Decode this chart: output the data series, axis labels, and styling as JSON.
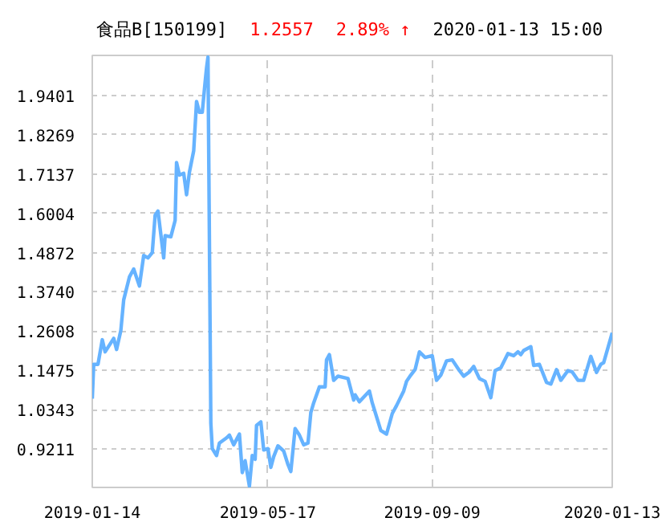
{
  "chart_data": {
    "type": "line",
    "title": "食品B[150199]",
    "annotations": [
      "1.2557",
      "2.89% ↑",
      "2020-01-13 15:00"
    ],
    "x": [
      "2019-01-14",
      "2019-01-15",
      "2019-01-18",
      "2019-01-21",
      "2019-01-23",
      "2019-01-29",
      "2019-01-31",
      "2019-02-03",
      "2019-02-05",
      "2019-02-09",
      "2019-02-12",
      "2019-02-16",
      "2019-02-19",
      "2019-02-22",
      "2019-02-25",
      "2019-02-27",
      "2019-03-01",
      "2019-03-05",
      "2019-03-06",
      "2019-03-10",
      "2019-03-13",
      "2019-03-14",
      "2019-03-16",
      "2019-03-19",
      "2019-03-21",
      "2019-03-23",
      "2019-03-26",
      "2019-03-28",
      "2019-03-30",
      "2019-04-01",
      "2019-04-03",
      "2019-04-04",
      "2019-04-05",
      "2019-04-07",
      "2019-04-08",
      "2019-04-11",
      "2019-04-13",
      "2019-04-18",
      "2019-04-20",
      "2019-04-23",
      "2019-04-27",
      "2019-04-29",
      "2019-05-01",
      "2019-05-04",
      "2019-05-06",
      "2019-05-08",
      "2019-05-09",
      "2019-05-12",
      "2019-05-14",
      "2019-05-17",
      "2019-05-19",
      "2019-05-21",
      "2019-05-24",
      "2019-05-28",
      "2019-05-31",
      "2019-06-02",
      "2019-06-05",
      "2019-06-08",
      "2019-06-11",
      "2019-06-14",
      "2019-06-16",
      "2019-06-18",
      "2019-06-22",
      "2019-06-26",
      "2019-06-27",
      "2019-06-29",
      "2019-07-02",
      "2019-07-05",
      "2019-07-12",
      "2019-07-16",
      "2019-07-17",
      "2019-07-20",
      "2019-07-27",
      "2019-07-29",
      "2019-08-04",
      "2019-08-08",
      "2019-08-12",
      "2019-08-15",
      "2019-08-20",
      "2019-08-22",
      "2019-08-25",
      "2019-08-28",
      "2019-08-31",
      "2019-09-04",
      "2019-09-09",
      "2019-09-12",
      "2019-09-15",
      "2019-09-19",
      "2019-09-23",
      "2019-09-28",
      "2019-10-01",
      "2019-10-05",
      "2019-10-08",
      "2019-10-12",
      "2019-10-16",
      "2019-10-20",
      "2019-10-23",
      "2019-10-27",
      "2019-11-01",
      "2019-11-05",
      "2019-11-08",
      "2019-11-10",
      "2019-11-12",
      "2019-11-17",
      "2019-11-19",
      "2019-11-23",
      "2019-11-28",
      "2019-12-01",
      "2019-12-05",
      "2019-12-08",
      "2019-12-13",
      "2019-12-16",
      "2019-12-20",
      "2019-12-24",
      "2019-12-29",
      "2020-01-02",
      "2020-01-05",
      "2020-01-07",
      "2020-01-13"
    ],
    "series": [
      {
        "color": "#66b3ff",
        "values": [
          1.066,
          1.165,
          1.165,
          1.236,
          1.201,
          1.24,
          1.208,
          1.263,
          1.351,
          1.417,
          1.44,
          1.391,
          1.479,
          1.472,
          1.487,
          1.595,
          1.607,
          1.472,
          1.536,
          1.533,
          1.58,
          1.747,
          1.711,
          1.716,
          1.654,
          1.719,
          1.781,
          1.923,
          1.892,
          1.892,
          1.979,
          2.02,
          2.051,
          0.995,
          0.922,
          0.902,
          0.938,
          0.953,
          0.961,
          0.933,
          0.964,
          0.853,
          0.887,
          0.814,
          0.902,
          0.891,
          0.989,
          0.999,
          0.918,
          0.922,
          0.868,
          0.899,
          0.93,
          0.915,
          0.876,
          0.856,
          0.98,
          0.961,
          0.933,
          0.938,
          1.026,
          1.054,
          1.1,
          1.1,
          1.178,
          1.193,
          1.119,
          1.131,
          1.124,
          1.062,
          1.077,
          1.057,
          1.088,
          1.054,
          0.974,
          0.964,
          1.023,
          1.046,
          1.088,
          1.116,
          1.134,
          1.15,
          1.201,
          1.185,
          1.19,
          1.119,
          1.134,
          1.175,
          1.178,
          1.147,
          1.131,
          1.143,
          1.159,
          1.124,
          1.116,
          1.069,
          1.147,
          1.155,
          1.196,
          1.19,
          1.201,
          1.193,
          1.205,
          1.216,
          1.162,
          1.165,
          1.113,
          1.108,
          1.15,
          1.119,
          1.147,
          1.143,
          1.119,
          1.119,
          1.188,
          1.142,
          1.165,
          1.17,
          1.256
        ]
      }
    ],
    "xlim": [
      "2019-01-14",
      "2020-01-13"
    ],
    "xticks": [
      "2019-01-14",
      "2019-05-17",
      "2019-09-09",
      "2020-01-13"
    ],
    "ylim": [
      0.81,
      2.056
    ],
    "yticks": [
      {
        "value": 0.9211,
        "label": "0.9211"
      },
      {
        "value": 1.0343,
        "label": "1.0343"
      },
      1.1475,
      1.2608,
      {
        "value": 1.374,
        "label": "1.3740"
      },
      1.4872,
      1.6004,
      1.7137,
      1.8269,
      1.9401
    ],
    "grid": true,
    "marker": "none",
    "line_style": "solid"
  }
}
